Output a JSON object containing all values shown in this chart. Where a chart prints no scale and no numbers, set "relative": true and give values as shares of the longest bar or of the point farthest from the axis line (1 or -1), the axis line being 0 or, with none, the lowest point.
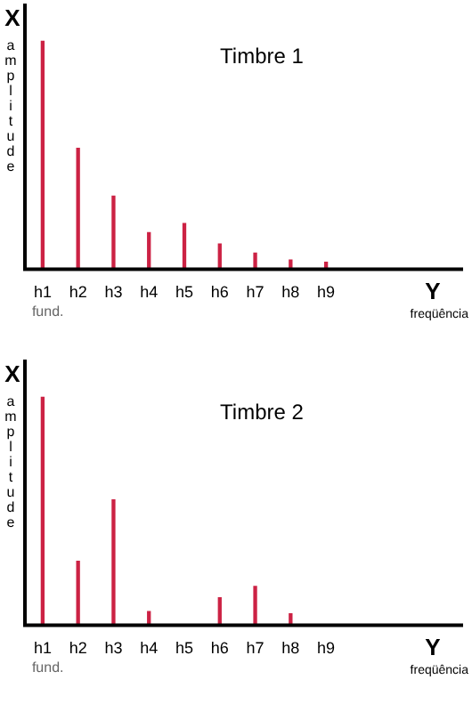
{
  "chart_data": [
    {
      "type": "bar",
      "title": "Timbre 1",
      "xlabel": "freqüência",
      "ylabel": "amplitude",
      "categories": [
        "h1",
        "h2",
        "h3",
        "h4",
        "h5",
        "h6",
        "h7",
        "h8",
        "h9"
      ],
      "relative": true,
      "color": "#cc2244",
      "values": [
        1,
        0.53,
        0.32,
        0.16,
        0.2,
        0.11,
        0.07,
        0.04,
        0.03
      ],
      "annotations": [
        "X",
        "Y",
        "fund."
      ]
    },
    {
      "type": "bar",
      "title": "Timbre 2",
      "xlabel": "freqüência",
      "ylabel": "amplitude",
      "categories": [
        "h1",
        "h2",
        "h3",
        "h4",
        "h5",
        "h6",
        "h7",
        "h8",
        "h9"
      ],
      "relative": true,
      "color": "#cc2244",
      "values": [
        1,
        0.28,
        0.55,
        0.06,
        0,
        0.12,
        0.17,
        0.05,
        0
      ],
      "annotations": [
        "X",
        "Y",
        "fund."
      ]
    }
  ]
}
